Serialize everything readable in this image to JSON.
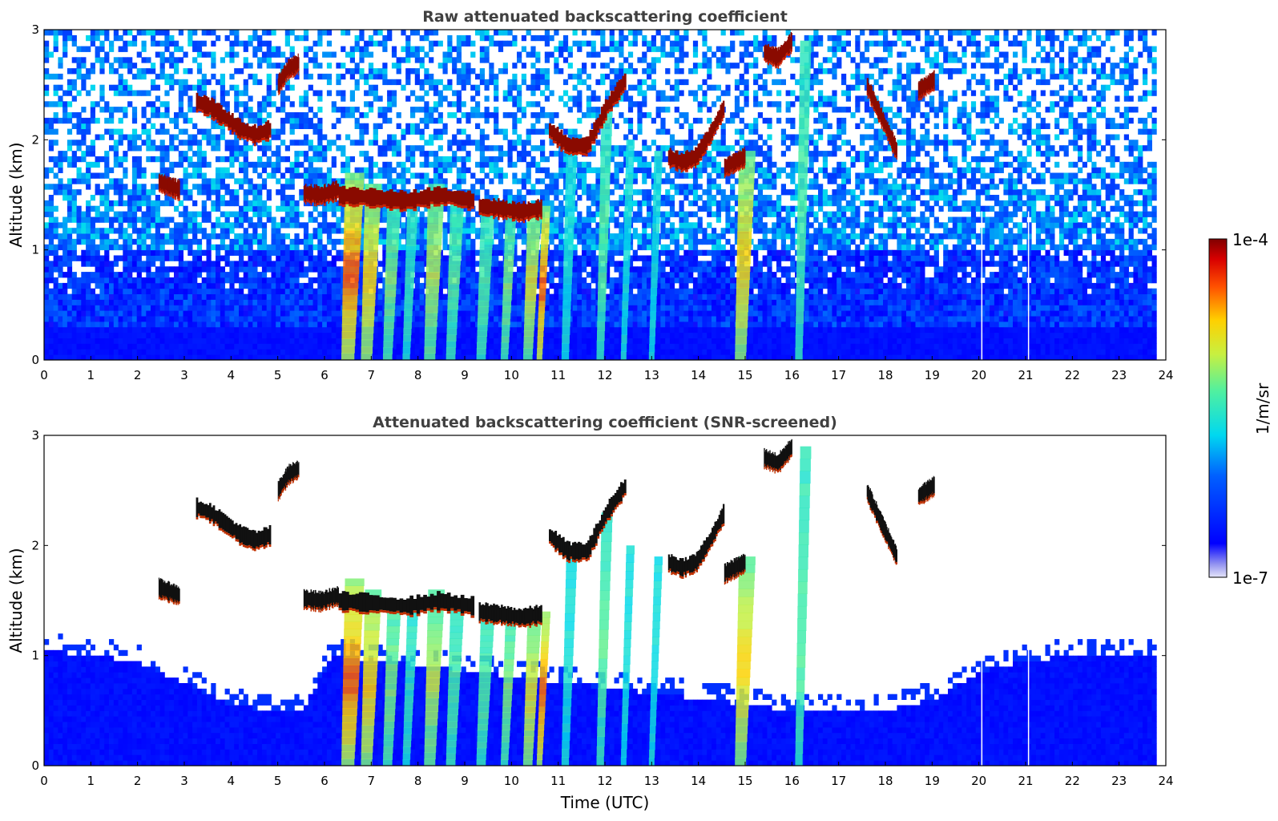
{
  "chart_data": [
    {
      "type": "heatmap",
      "title": "Raw attenuated backscattering coefficient",
      "xlabel": "",
      "ylabel": "Altitude (km)",
      "xlim": [
        0,
        24
      ],
      "ylim": [
        0,
        3
      ],
      "xticks": [
        "0",
        "1",
        "2",
        "3",
        "4",
        "5",
        "6",
        "7",
        "8",
        "9",
        "10",
        "11",
        "12",
        "13",
        "14",
        "15",
        "16",
        "17",
        "18",
        "19",
        "20",
        "21",
        "22",
        "23",
        "24"
      ],
      "yticks": [
        "0",
        "1",
        "2",
        "3"
      ],
      "data_end_hour": 23.8,
      "noise_top_km": 3.0,
      "cloud_layers": [
        {
          "t0": 3.25,
          "t1": 4.85,
          "alt": [
            2.35,
            2.3,
            2.2,
            2.1,
            2.05,
            2.1
          ]
        },
        {
          "t0": 5.0,
          "t1": 5.45,
          "alt": [
            2.5,
            2.65,
            2.7
          ]
        },
        {
          "t0": 2.45,
          "t1": 2.9,
          "alt": [
            1.62,
            1.55
          ]
        },
        {
          "t0": 5.55,
          "t1": 6.3,
          "alt": [
            1.52,
            1.5,
            1.55
          ]
        },
        {
          "t0": 6.3,
          "t1": 9.2,
          "alt": [
            1.5,
            1.48,
            1.45,
            1.5,
            1.45
          ]
        },
        {
          "t0": 9.3,
          "t1": 10.65,
          "alt": [
            1.4,
            1.38,
            1.35,
            1.38
          ]
        },
        {
          "t0": 10.8,
          "t1": 12.45,
          "alt": [
            2.1,
            1.95,
            1.95,
            2.3,
            2.55
          ]
        },
        {
          "t0": 13.35,
          "t1": 14.55,
          "alt": [
            1.85,
            1.8,
            1.85,
            2.05,
            2.3
          ]
        },
        {
          "t0": 14.55,
          "t1": 15.0,
          "alt": [
            1.75,
            1.85
          ]
        },
        {
          "t0": 15.4,
          "t1": 16.0,
          "alt": [
            2.8,
            2.75,
            2.9
          ]
        },
        {
          "t0": 17.6,
          "t1": 18.25,
          "alt": [
            2.5,
            2.3,
            2.1,
            1.9
          ]
        },
        {
          "t0": 18.7,
          "t1": 19.05,
          "alt": [
            2.45,
            2.55
          ]
        }
      ],
      "precip_shafts": [
        {
          "t": 6.5,
          "w": 0.35,
          "top": 1.7,
          "c": 0.85
        },
        {
          "t": 6.9,
          "w": 0.3,
          "top": 1.6,
          "c": 0.75
        },
        {
          "t": 7.35,
          "w": 0.25,
          "top": 1.5,
          "c": 0.6
        },
        {
          "t": 7.75,
          "w": 0.2,
          "top": 1.5,
          "c": 0.5
        },
        {
          "t": 8.25,
          "w": 0.3,
          "top": 1.6,
          "c": 0.65
        },
        {
          "t": 8.7,
          "w": 0.25,
          "top": 1.5,
          "c": 0.55
        },
        {
          "t": 9.35,
          "w": 0.25,
          "top": 1.4,
          "c": 0.55
        },
        {
          "t": 9.85,
          "w": 0.2,
          "top": 1.4,
          "c": 0.6
        },
        {
          "t": 10.35,
          "w": 0.25,
          "top": 1.4,
          "c": 0.7
        },
        {
          "t": 10.6,
          "w": 0.15,
          "top": 1.4,
          "c": 0.85
        },
        {
          "t": 11.15,
          "w": 0.2,
          "top": 2.0,
          "c": 0.45
        },
        {
          "t": 11.9,
          "w": 0.2,
          "top": 2.3,
          "c": 0.55
        },
        {
          "t": 12.4,
          "w": 0.15,
          "top": 2.0,
          "c": 0.45
        },
        {
          "t": 13.0,
          "w": 0.15,
          "top": 1.9,
          "c": 0.45
        },
        {
          "t": 14.9,
          "w": 0.3,
          "top": 1.9,
          "c": 0.75
        },
        {
          "t": 16.15,
          "w": 0.2,
          "top": 2.9,
          "c": 0.55
        }
      ]
    },
    {
      "type": "heatmap",
      "title": "Attenuated backscattering coefficient (SNR-screened)",
      "xlabel": "Time (UTC)",
      "ylabel": "Altitude (km)",
      "xlim": [
        0,
        24
      ],
      "ylim": [
        0,
        3
      ],
      "xticks": [
        "0",
        "1",
        "2",
        "3",
        "4",
        "5",
        "6",
        "7",
        "8",
        "9",
        "10",
        "11",
        "12",
        "13",
        "14",
        "15",
        "16",
        "17",
        "18",
        "19",
        "20",
        "21",
        "22",
        "23",
        "24"
      ],
      "yticks": [
        "0",
        "1",
        "2",
        "3"
      ],
      "boundary_layer_top": [
        [
          0,
          1.05
        ],
        [
          1,
          1.0
        ],
        [
          2,
          0.95
        ],
        [
          3,
          0.75
        ],
        [
          4,
          0.55
        ],
        [
          5,
          0.5
        ],
        [
          5.5,
          0.5
        ],
        [
          6.2,
          1.0
        ],
        [
          15.2,
          0.55
        ],
        [
          16,
          0.5
        ],
        [
          17,
          0.5
        ],
        [
          18,
          0.5
        ],
        [
          19,
          0.6
        ],
        [
          20,
          0.85
        ],
        [
          21,
          0.95
        ],
        [
          22,
          1.0
        ],
        [
          23,
          1.0
        ],
        [
          23.8,
          1.0
        ]
      ]
    }
  ],
  "colorbar": {
    "max_label": "1e-4",
    "min_label": "1e-7",
    "label": "1/m/sr",
    "colormap": "jet"
  }
}
